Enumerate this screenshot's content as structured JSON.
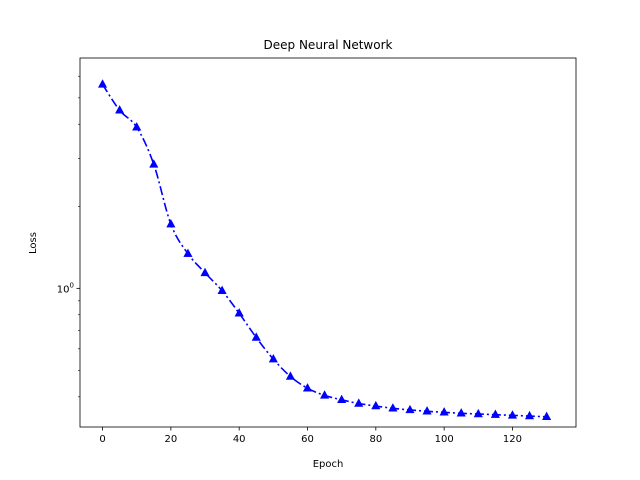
{
  "chart_data": {
    "type": "line",
    "title": "Deep Neural Network",
    "xlabel": "Epoch",
    "ylabel": "Loss",
    "xlim": [
      -6.6,
      138.6
    ],
    "ylim": [
      0.31,
      7.0
    ],
    "yscale": "log",
    "grid": false,
    "x_ticks": [
      0,
      20,
      40,
      60,
      80,
      100,
      120
    ],
    "x_tick_labels": [
      "0",
      "20",
      "40",
      "60",
      "80",
      "100",
      "120"
    ],
    "y_ticks": [
      1
    ],
    "y_tick_base": "10",
    "y_tick_exponent": "0",
    "series": [
      {
        "color": "#0000ff",
        "line_style": "dashdot",
        "marker": "triangle-up",
        "x": [
          0,
          5,
          10,
          15,
          20,
          25,
          30,
          35,
          40,
          45,
          50,
          55,
          60,
          65,
          70,
          75,
          80,
          85,
          90,
          95,
          100,
          105,
          110,
          115,
          120,
          125,
          130
        ],
        "y": [
          5.6,
          4.5,
          3.9,
          2.85,
          1.72,
          1.34,
          1.14,
          0.98,
          0.81,
          0.66,
          0.55,
          0.475,
          0.43,
          0.405,
          0.39,
          0.378,
          0.37,
          0.363,
          0.358,
          0.354,
          0.351,
          0.348,
          0.346,
          0.344,
          0.342,
          0.34,
          0.338
        ]
      }
    ]
  }
}
